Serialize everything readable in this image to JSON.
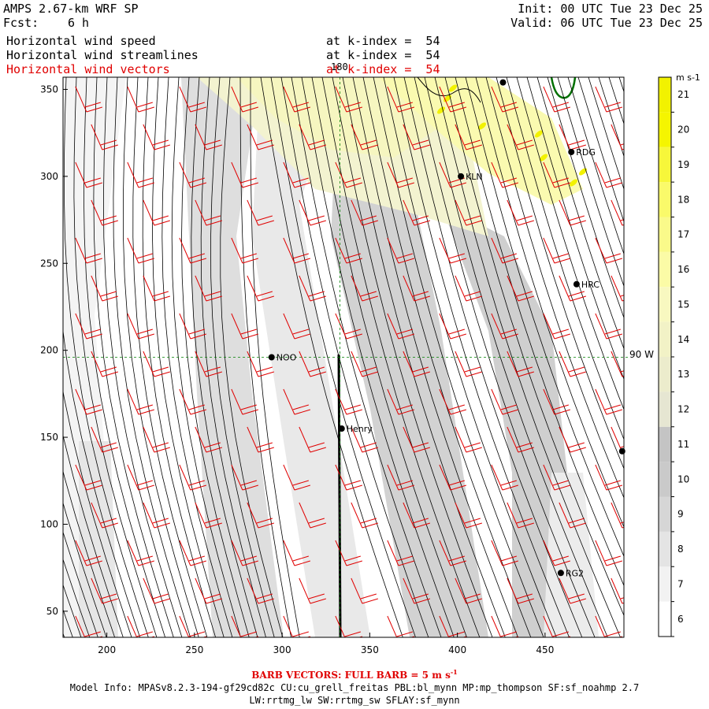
{
  "header": {
    "model": "AMPS 2.67-km WRF SP",
    "fcst_label": "Fcst:",
    "fcst_value": "6 h",
    "init": "Init: 00 UTC Tue 23 Dec 25",
    "valid": "Valid: 06 UTC Tue 23 Dec 25",
    "fields": [
      {
        "name": "Horizontal wind speed",
        "level": "at k-index =  54",
        "color": "#000000"
      },
      {
        "name": "Horizontal wind streamlines",
        "level": "at k-index =  54",
        "color": "#000000"
      },
      {
        "name": "Horizontal wind vectors",
        "level": "at k-index =  54",
        "color": "#e00000"
      }
    ]
  },
  "map": {
    "x_ticks": [
      200,
      250,
      300,
      350,
      400,
      450
    ],
    "y_ticks": [
      50,
      100,
      150,
      200,
      250,
      300,
      350
    ],
    "xlim": [
      175,
      495
    ],
    "ylim": [
      35,
      357
    ],
    "meridian_label": "180",
    "meridian_x": 333,
    "parallel_label": "90 W",
    "parallel_y": 196,
    "stations": [
      {
        "name": "RDG",
        "x": 465,
        "y": 314
      },
      {
        "name": "KLN",
        "x": 402,
        "y": 300
      },
      {
        "name": "HRC",
        "x": 468,
        "y": 238
      },
      {
        "name": "NOO",
        "x": 294,
        "y": 196
      },
      {
        "name": "Henry",
        "x": 334,
        "y": 155
      },
      {
        "name": "RG2",
        "x": 459,
        "y": 72
      },
      {
        "name": "",
        "x": 426,
        "y": 354
      },
      {
        "name": "",
        "x": 494,
        "y": 142
      }
    ]
  },
  "colorbar": {
    "unit": "m s-1",
    "levels": [
      6,
      7,
      8,
      9,
      10,
      11,
      12,
      13,
      14,
      15,
      16,
      17,
      18,
      19,
      20,
      21
    ],
    "colors": [
      "#ffffff",
      "#f2f2f2",
      "#e4e4e4",
      "#d6d6d6",
      "#cacaca",
      "#c4c4c4",
      "#e6e6d2",
      "#ececcc",
      "#f2f2c6",
      "#f8f8c0",
      "#fbfba6",
      "#fafa8a",
      "#fafa6a",
      "#f7f73a",
      "#f5f500",
      "#f2f200"
    ]
  },
  "footer": {
    "barb_note": "BARB VECTORS:  FULL BARB = 5 m s",
    "barb_unit_sup": "-1",
    "model_info": "Model Info: MPASv8.2.3-194-gf29cd82c CU:cu_grell_freitas PBL:bl_mynn MP:mp_thompson SF:sf_noahmp 2.7",
    "model_info_2": "LW:rrtmg_lw SW:rrtmg_sw SFLAY:sf_mynn"
  }
}
